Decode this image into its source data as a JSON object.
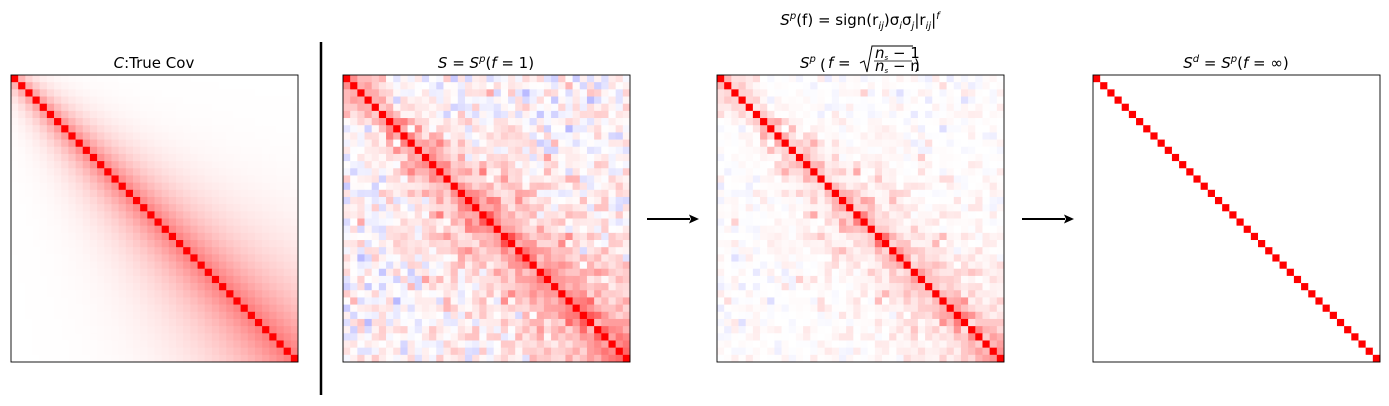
{
  "figure": {
    "heading": "S^p(f) = sign(r_ij) σ_i σ_j |r_ij|^f",
    "heading_parts": {
      "lhs": "S",
      "lhs_sup": "p",
      "lhs_arg": "(f) = sign(r",
      "sub1": "ij",
      "mid": ")σ",
      "sub_i": "i",
      "sigma": "σ",
      "sub_j": "j",
      "abs_open": "|r",
      "sub2": "ij",
      "abs_close": "|",
      "exp": "f"
    }
  },
  "chart_data": [
    {
      "type": "heatmap",
      "title": "C:True Cov",
      "title_parts": {
        "italic": "C",
        "rest": ":True Cov"
      },
      "xlabel": "",
      "ylabel": "",
      "size": 40,
      "colormap": "bwr",
      "clim": [
        -1,
        1
      ],
      "structure": "banded true covariance; diagonal 1, off-diagonal decays with distance, band widens toward bottom-right",
      "diagonal_value": 1.0,
      "seed": 0
    },
    {
      "type": "heatmap",
      "title": "S = S^p(f = 1)",
      "title_parts": {
        "a": "S",
        "eq1": " = ",
        "b": "S",
        "sup": "p",
        "c": "(",
        "d": "f",
        "e": " = 1)"
      },
      "xlabel": "",
      "ylabel": "",
      "size": 40,
      "colormap": "bwr",
      "clim": [
        -1,
        1
      ],
      "structure": "noisy sample covariance of the true covariance",
      "power_f": 1,
      "noise_level": 0.18,
      "seed": 7
    },
    {
      "type": "heatmap",
      "title": "S^p(f = sqrt((n_s - 1)/(n_s - n)))",
      "title_parts": {
        "a": "S",
        "sup": "p",
        "f": "f",
        "eq": " = ",
        "num": "n",
        "num_sub": "s",
        "num_rest": " − 1",
        "den": "n",
        "den_sub": "s",
        "den_rest": " − n"
      },
      "xlabel": "",
      "ylabel": "",
      "size": 40,
      "colormap": "bwr",
      "clim": [
        -1,
        1
      ],
      "structure": "sample covariance with correlations raised to power f > 1 (shrunk off-diagonals)",
      "power_f": 1.6,
      "seed": 7
    },
    {
      "type": "heatmap",
      "title": "S^d = S^p(f = ∞)",
      "title_parts": {
        "a": "S",
        "sup_d": "d",
        "eq1": " = ",
        "b": "S",
        "sup": "p",
        "c": "(",
        "d": "f",
        "e": " = ∞)"
      },
      "xlabel": "",
      "ylabel": "",
      "size": 40,
      "colormap": "bwr",
      "clim": [
        -1,
        1
      ],
      "structure": "diagonal only",
      "power_f": "inf",
      "diagonal_value": 1.0
    }
  ],
  "arrows": [
    {
      "from": "S = S^p(f = 1)",
      "to": "S^p(f = sqrt((n_s - 1)/(n_s - n)))"
    },
    {
      "from": "S^p(f = sqrt((n_s - 1)/(n_s - n)))",
      "to": "S^d = S^p(f = ∞)"
    }
  ],
  "colors": {
    "positive": "#ff0000",
    "negative": "#0000ff",
    "zero": "#ffffff",
    "frame": "#000000"
  }
}
